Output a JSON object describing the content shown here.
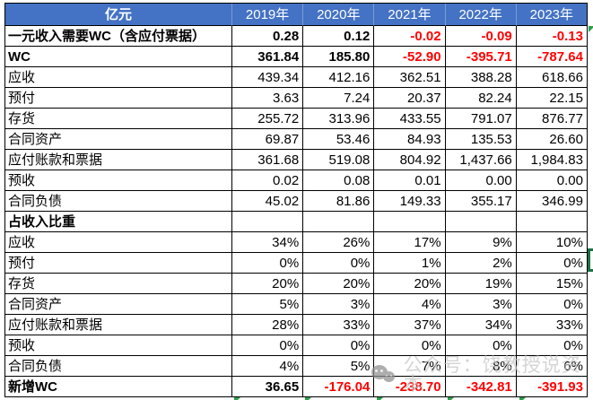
{
  "header": {
    "unit_label": "亿元",
    "years": [
      "2019年",
      "2020年",
      "2021年",
      "2022年",
      "2023年"
    ]
  },
  "rows": [
    {
      "label": "一元收入需要WC（含应付票据）",
      "bold": true,
      "values": [
        "0.28",
        "0.12",
        "-0.02",
        "-0.09",
        "-0.13"
      ]
    },
    {
      "label": "WC",
      "bold": true,
      "values": [
        "361.84",
        "185.80",
        "-52.90",
        "-395.71",
        "-787.64"
      ]
    },
    {
      "label": "应收",
      "bold": false,
      "values": [
        "439.34",
        "412.16",
        "362.51",
        "388.28",
        "618.66"
      ]
    },
    {
      "label": "预付",
      "bold": false,
      "values": [
        "3.63",
        "7.24",
        "20.37",
        "82.24",
        "22.15"
      ]
    },
    {
      "label": "存货",
      "bold": false,
      "values": [
        "255.72",
        "313.96",
        "433.55",
        "791.07",
        "876.77"
      ]
    },
    {
      "label": "合同资产",
      "bold": false,
      "values": [
        "69.87",
        "53.46",
        "84.93",
        "135.53",
        "26.60"
      ]
    },
    {
      "label": "应付账款和票据",
      "bold": false,
      "values": [
        "361.68",
        "519.08",
        "804.92",
        "1,437.66",
        "1,984.83"
      ]
    },
    {
      "label": "预收",
      "bold": false,
      "values": [
        "0.02",
        "0.08",
        "0.01",
        "0.00",
        "0.00"
      ]
    },
    {
      "label": "合同负债",
      "bold": false,
      "values": [
        "45.02",
        "81.86",
        "149.33",
        "355.17",
        "346.99"
      ]
    },
    {
      "label": "占收入比重",
      "bold": true,
      "values": [
        "",
        "",
        "",
        "",
        ""
      ]
    },
    {
      "label": "应收",
      "bold": false,
      "values": [
        "34%",
        "26%",
        "17%",
        "9%",
        "10%"
      ]
    },
    {
      "label": "预付",
      "bold": false,
      "values": [
        "0%",
        "0%",
        "1%",
        "2%",
        "0%"
      ]
    },
    {
      "label": "存货",
      "bold": false,
      "values": [
        "20%",
        "20%",
        "20%",
        "19%",
        "15%"
      ]
    },
    {
      "label": "合同资产",
      "bold": false,
      "values": [
        "5%",
        "3%",
        "4%",
        "3%",
        "0%"
      ]
    },
    {
      "label": "应付账款和票据",
      "bold": false,
      "values": [
        "28%",
        "33%",
        "37%",
        "34%",
        "33%"
      ]
    },
    {
      "label": "预收",
      "bold": false,
      "values": [
        "0%",
        "0%",
        "0%",
        "0%",
        "0%"
      ]
    },
    {
      "label": "合同负债",
      "bold": false,
      "values": [
        "4%",
        "5%",
        "7%",
        "8%",
        "6%"
      ]
    },
    {
      "label": "新增WC",
      "bold": true,
      "values": [
        "36.65",
        "-176.04",
        "-238.70",
        "-342.81",
        "-391.93"
      ]
    }
  ],
  "watermark": {
    "icon": "wechat-official-account-icon",
    "text": "公众号：饶教授说资本"
  },
  "colors": {
    "header_bg": "#4472C4",
    "header_text": "#FFFFFF",
    "negative_value": "#FF0000",
    "grid_border": "#000000",
    "selection_green": "#1E7145",
    "error_triangle_green": "#2E9E4C",
    "watermark_gray": "#C4C4C4"
  }
}
